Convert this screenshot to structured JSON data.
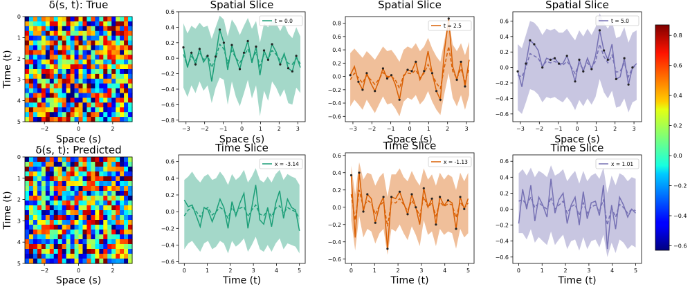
{
  "colors": {
    "green": "#1b9e77",
    "orange": "#d95f02",
    "purple": "#7570b3"
  },
  "colorbar": {
    "ticks": [
      0.8,
      0.6,
      0.4,
      0.2,
      0.0,
      -0.2,
      -0.4,
      -0.6
    ],
    "vmin": -0.63,
    "vmax": 0.87
  },
  "chart_data": [
    {
      "type": "heatmap",
      "title": "δ(s, t): True",
      "xlabel": "Space (s)",
      "ylabel": "Time (t)",
      "xticks": [
        -2,
        0,
        2
      ],
      "yticks": [
        0,
        1,
        2,
        3,
        4,
        5
      ],
      "xlim": [
        -3.14,
        3.14
      ],
      "ylim": [
        0,
        5
      ],
      "seed": 7
    },
    {
      "type": "heatmap",
      "title": "δ(s, t): Predicted",
      "xlabel": "Space (s)",
      "ylabel": "Time (t)",
      "xticks": [
        -2,
        0,
        2
      ],
      "yticks": [
        0,
        1,
        2,
        3,
        4,
        5
      ],
      "xlim": [
        -3.14,
        3.14
      ],
      "ylim": [
        0,
        5
      ],
      "seed": 19
    },
    {
      "type": "line",
      "title": "Spatial Slice",
      "xlabel": "Space (s)",
      "legend": "t = 0.0",
      "color": "green",
      "xlim": [
        -3.4,
        3.4
      ],
      "ylim": [
        -0.82,
        0.6
      ],
      "xticks": [
        -3,
        -2,
        -1,
        0,
        1,
        2,
        3
      ],
      "yticks": [
        0.6,
        0.4,
        0.2,
        0.0,
        -0.2,
        -0.4,
        -0.6,
        -0.8
      ],
      "x": [
        -3.14,
        -2.92,
        -2.71,
        -2.49,
        -2.27,
        -2.06,
        -1.84,
        -1.62,
        -1.41,
        -1.19,
        -0.97,
        -0.76,
        -0.54,
        -0.32,
        -0.11,
        0.11,
        0.32,
        0.54,
        0.76,
        0.97,
        1.19,
        1.41,
        1.62,
        1.84,
        2.06,
        2.27,
        2.49,
        2.71,
        2.92,
        3.14
      ],
      "true": [
        0.14,
        -0.12,
        0.07,
        -0.08,
        0.12,
        -0.05,
        0.03,
        -0.3,
        0.02,
        0.37,
        0.2,
        -0.15,
        0.17,
        0.0,
        -0.14,
        0.07,
        0.22,
        -0.06,
        0.15,
        -0.22,
        0.1,
        -0.02,
        0.18,
        0.08,
        -0.08,
        0.06,
        -0.13,
        -0.17,
        0.03,
        -0.12
      ],
      "mean": [
        0.05,
        -0.1,
        0.02,
        -0.03,
        0.08,
        -0.02,
        0.04,
        -0.12,
        0.0,
        0.18,
        0.12,
        -0.06,
        0.1,
        0.0,
        -0.06,
        0.03,
        0.12,
        -0.02,
        0.08,
        -0.1,
        0.05,
        -0.01,
        0.1,
        0.05,
        -0.03,
        0.03,
        -0.07,
        -0.08,
        0.0,
        -0.07
      ],
      "lower": [
        -0.38,
        -0.5,
        -0.35,
        -0.45,
        -0.3,
        -0.42,
        -0.35,
        -0.58,
        -0.38,
        -0.25,
        -0.28,
        -0.6,
        -0.3,
        -0.5,
        -0.62,
        -0.45,
        -0.28,
        -0.52,
        -0.35,
        -0.75,
        -0.42,
        -0.55,
        -0.3,
        -0.38,
        -0.5,
        -0.4,
        -0.58,
        -0.6,
        -0.38,
        -0.45
      ],
      "upper": [
        0.45,
        0.32,
        0.42,
        0.38,
        0.46,
        0.4,
        0.42,
        0.25,
        0.4,
        0.55,
        0.5,
        0.28,
        0.5,
        0.42,
        0.3,
        0.42,
        0.52,
        0.38,
        0.48,
        0.2,
        0.45,
        0.4,
        0.5,
        0.45,
        0.35,
        0.45,
        0.32,
        0.26,
        0.4,
        0.28
      ],
      "markers": true
    },
    {
      "type": "line",
      "title": "Spatial Slice",
      "xlabel": "Space (s)",
      "legend": "t = 2.5",
      "color": "orange",
      "xlim": [
        -3.4,
        3.4
      ],
      "ylim": [
        -0.68,
        0.9
      ],
      "xticks": [
        -3,
        -2,
        -1,
        0,
        1,
        2,
        3
      ],
      "yticks": [
        0.8,
        0.6,
        0.4,
        0.2,
        0.0,
        -0.2,
        -0.4,
        -0.6
      ],
      "x": [
        -3.14,
        -2.92,
        -2.71,
        -2.49,
        -2.27,
        -2.06,
        -1.84,
        -1.62,
        -1.41,
        -1.19,
        -0.97,
        -0.76,
        -0.54,
        -0.32,
        -0.11,
        0.11,
        0.32,
        0.54,
        0.76,
        0.97,
        1.19,
        1.41,
        1.62,
        1.84,
        2.06,
        2.27,
        2.49,
        2.71,
        2.92,
        3.14
      ],
      "true": [
        0.02,
        0.15,
        -0.08,
        -0.2,
        0.05,
        -0.1,
        -0.22,
        -0.06,
        0.12,
        -0.03,
        0.02,
        -0.12,
        -0.35,
        0.0,
        0.1,
        0.08,
        0.22,
        -0.05,
        0.08,
        0.38,
        0.05,
        -0.22,
        -0.35,
        0.4,
        0.87,
        0.15,
        -0.05,
        0.22,
        -0.15,
        0.25
      ],
      "mean": [
        -0.05,
        0.05,
        -0.02,
        -0.1,
        0.02,
        -0.05,
        -0.12,
        -0.04,
        0.06,
        0.0,
        0.0,
        -0.05,
        -0.18,
        0.02,
        0.05,
        0.04,
        0.1,
        -0.02,
        0.05,
        0.18,
        0.03,
        -0.1,
        -0.18,
        0.15,
        0.45,
        0.08,
        -0.03,
        0.12,
        -0.08,
        0.12
      ],
      "lower": [
        -0.45,
        -0.35,
        -0.42,
        -0.5,
        -0.35,
        -0.45,
        -0.55,
        -0.42,
        -0.3,
        -0.42,
        -0.4,
        -0.48,
        -0.6,
        -0.38,
        -0.32,
        -0.35,
        -0.28,
        -0.42,
        -0.35,
        -0.22,
        -0.38,
        -0.5,
        -0.58,
        -0.25,
        0.05,
        -0.32,
        -0.45,
        -0.28,
        -0.5,
        -0.28
      ],
      "upper": [
        0.35,
        0.42,
        0.35,
        0.28,
        0.38,
        0.32,
        0.25,
        0.35,
        0.45,
        0.38,
        0.4,
        0.32,
        0.22,
        0.4,
        0.45,
        0.42,
        0.5,
        0.38,
        0.45,
        0.58,
        0.42,
        0.3,
        0.22,
        0.55,
        0.85,
        0.48,
        0.38,
        0.5,
        0.32,
        0.52
      ],
      "markers": true
    },
    {
      "type": "line",
      "title": "Spatial Slice",
      "xlabel": "Space (s)",
      "legend": "t = 5.0",
      "color": "purple",
      "xlim": [
        -3.4,
        3.4
      ],
      "ylim": [
        -0.7,
        0.72
      ],
      "xticks": [
        -3,
        -2,
        -1,
        0,
        1,
        2,
        3
      ],
      "yticks": [
        0.6,
        0.4,
        0.2,
        0.0,
        -0.2,
        -0.4,
        -0.6
      ],
      "x": [
        -3.14,
        -2.92,
        -2.71,
        -2.49,
        -2.27,
        -2.06,
        -1.84,
        -1.62,
        -1.41,
        -1.19,
        -0.97,
        -0.76,
        -0.54,
        -0.32,
        -0.11,
        0.11,
        0.32,
        0.54,
        0.76,
        0.97,
        1.19,
        1.41,
        1.62,
        1.84,
        2.06,
        2.27,
        2.49,
        2.71,
        2.92,
        3.14
      ],
      "true": [
        -0.05,
        -0.25,
        0.05,
        0.35,
        0.3,
        0.22,
        0.0,
        0.12,
        0.1,
        0.12,
        0.05,
        0.05,
        0.15,
        0.0,
        -0.18,
        0.1,
        -0.05,
        0.12,
        -0.02,
        0.15,
        0.48,
        0.22,
        0.1,
        0.3,
        -0.15,
        -0.12,
        0.12,
        -0.22,
        0.0,
        0.05
      ],
      "mean": [
        -0.1,
        -0.12,
        0.0,
        0.18,
        0.15,
        0.12,
        0.02,
        0.08,
        0.06,
        0.08,
        0.04,
        0.03,
        0.08,
        0.01,
        -0.08,
        0.05,
        -0.02,
        0.06,
        0.0,
        0.08,
        0.3,
        0.14,
        0.06,
        0.16,
        -0.06,
        -0.05,
        0.06,
        -0.12,
        0.0,
        0.02
      ],
      "lower": [
        -0.55,
        -0.6,
        -0.45,
        -0.28,
        -0.3,
        -0.35,
        -0.45,
        -0.38,
        -0.4,
        -0.38,
        -0.42,
        -0.45,
        -0.38,
        -0.45,
        -0.55,
        -0.42,
        -0.5,
        -0.4,
        -0.48,
        -0.38,
        -0.15,
        -0.32,
        -0.4,
        -0.3,
        -0.52,
        -0.5,
        -0.4,
        -0.58,
        -0.45,
        -0.42
      ],
      "upper": [
        0.3,
        0.25,
        0.42,
        0.6,
        0.58,
        0.52,
        0.42,
        0.5,
        0.48,
        0.5,
        0.45,
        0.45,
        0.5,
        0.42,
        0.35,
        0.48,
        0.4,
        0.5,
        0.42,
        0.52,
        0.7,
        0.58,
        0.5,
        0.6,
        0.38,
        0.4,
        0.52,
        0.32,
        0.45,
        0.48
      ],
      "markers": true
    },
    {
      "type": "line",
      "title": "Time Slice",
      "xlabel": "Time (t)",
      "legend": "x = -3.14",
      "color": "green",
      "xlim": [
        -0.25,
        5.25
      ],
      "ylim": [
        -0.62,
        0.68
      ],
      "xticks": [
        0,
        1,
        2,
        3,
        4,
        5
      ],
      "yticks": [
        0.6,
        0.4,
        0.2,
        0.0,
        -0.2,
        -0.4,
        -0.6
      ],
      "x": [
        0,
        0.17,
        0.34,
        0.52,
        0.69,
        0.86,
        1.03,
        1.21,
        1.38,
        1.55,
        1.72,
        1.9,
        2.07,
        2.24,
        2.41,
        2.59,
        2.76,
        2.93,
        3.1,
        3.28,
        3.45,
        3.62,
        3.79,
        3.97,
        4.14,
        4.31,
        4.48,
        4.66,
        4.83,
        5.0
      ],
      "true": [
        0.14,
        0.06,
        0.08,
        -0.05,
        -0.18,
        0.05,
        0.02,
        -0.12,
        0.0,
        0.15,
        0.05,
        -0.2,
        0.12,
        -0.05,
        0.1,
        0.22,
        -0.2,
        0.05,
        0.32,
        -0.1,
        -0.15,
        0.05,
        -0.18,
        0.1,
        0.25,
        -0.08,
        0.15,
        0.05,
        0.02,
        -0.23
      ],
      "mean": [
        -0.05,
        0.02,
        0.05,
        0.0,
        -0.06,
        0.02,
        0.05,
        -0.04,
        0.0,
        0.05,
        0.02,
        -0.08,
        0.05,
        -0.02,
        0.04,
        0.06,
        -0.06,
        0.02,
        0.08,
        -0.03,
        -0.05,
        0.02,
        -0.06,
        0.04,
        0.07,
        -0.02,
        0.05,
        0.02,
        0.0,
        -0.08
      ],
      "lower": [
        -0.45,
        -0.38,
        -0.35,
        -0.42,
        -0.48,
        -0.38,
        -0.35,
        -0.45,
        -0.42,
        -0.35,
        -0.38,
        -0.5,
        -0.35,
        -0.42,
        -0.38,
        -0.32,
        -0.48,
        -0.4,
        -0.3,
        -0.45,
        -0.48,
        -0.4,
        -0.48,
        -0.38,
        -0.32,
        -0.45,
        -0.38,
        -0.4,
        -0.42,
        -0.5
      ],
      "upper": [
        0.38,
        0.42,
        0.48,
        0.4,
        0.35,
        0.42,
        0.45,
        0.38,
        0.4,
        0.48,
        0.42,
        0.32,
        0.45,
        0.38,
        0.42,
        0.5,
        0.35,
        0.42,
        0.52,
        0.38,
        0.35,
        0.42,
        0.35,
        0.45,
        0.5,
        0.38,
        0.45,
        0.42,
        0.4,
        0.32
      ],
      "markers": false
    },
    {
      "type": "line",
      "title": "Time Slice",
      "xlabel": "Time (t)",
      "legend": "x = -1.13",
      "color": "orange",
      "xlim": [
        -0.25,
        5.25
      ],
      "ylim": [
        -0.65,
        0.63
      ],
      "xticks": [
        0,
        1,
        2,
        3,
        4,
        5
      ],
      "yticks": [
        0.6,
        0.4,
        0.2,
        0.0,
        -0.2,
        -0.4,
        -0.6
      ],
      "x": [
        0,
        0.17,
        0.34,
        0.52,
        0.69,
        0.86,
        1.03,
        1.21,
        1.38,
        1.55,
        1.72,
        1.9,
        2.07,
        2.24,
        2.41,
        2.59,
        2.76,
        2.93,
        3.1,
        3.28,
        3.45,
        3.62,
        3.79,
        3.97,
        4.14,
        4.31,
        4.48,
        4.66,
        4.83,
        5.0
      ],
      "true": [
        0.37,
        -0.35,
        0.4,
        -0.05,
        0.15,
        0.1,
        -0.18,
        0.02,
        0.12,
        -0.48,
        0.12,
        0.1,
        0.18,
        0.05,
        -0.08,
        0.15,
        0.0,
        -0.2,
        0.22,
        0.0,
        0.1,
        -0.2,
        0.12,
        0.02,
        0.08,
        0.05,
        -0.25,
        0.12,
        -0.02,
        0.1
      ],
      "mean": [
        0.15,
        -0.15,
        0.2,
        0.0,
        0.08,
        0.05,
        -0.08,
        0.02,
        0.06,
        -0.22,
        0.06,
        0.05,
        0.1,
        0.03,
        -0.04,
        0.08,
        0.0,
        -0.1,
        0.12,
        0.0,
        0.05,
        -0.1,
        0.06,
        0.01,
        0.04,
        0.03,
        -0.12,
        0.06,
        -0.01,
        0.05
      ],
      "lower": [
        -0.15,
        -0.5,
        -0.1,
        -0.35,
        -0.25,
        -0.28,
        -0.42,
        -0.3,
        -0.25,
        -0.55,
        -0.25,
        -0.28,
        -0.2,
        -0.3,
        -0.38,
        -0.22,
        -0.32,
        -0.45,
        -0.15,
        -0.32,
        -0.28,
        -0.45,
        -0.25,
        -0.32,
        -0.28,
        -0.3,
        -0.48,
        -0.25,
        -0.35,
        -0.3
      ],
      "upper": [
        0.48,
        0.15,
        0.52,
        0.32,
        0.4,
        0.38,
        0.25,
        0.35,
        0.4,
        0.12,
        0.38,
        0.38,
        0.45,
        0.35,
        0.3,
        0.42,
        0.32,
        0.25,
        0.45,
        0.32,
        0.38,
        0.25,
        0.4,
        0.32,
        0.38,
        0.35,
        0.2,
        0.4,
        0.3,
        0.4
      ],
      "markers": true
    },
    {
      "type": "line",
      "title": "Time Slice",
      "xlabel": "Time (t)",
      "legend": "x = 1.01",
      "color": "purple",
      "xlim": [
        -0.25,
        5.25
      ],
      "ylim": [
        -0.68,
        0.68
      ],
      "xticks": [
        0,
        1,
        2,
        3,
        4,
        5
      ],
      "yticks": [
        0.6,
        0.4,
        0.2,
        0.0,
        -0.2,
        -0.4,
        -0.6
      ],
      "x": [
        0,
        0.17,
        0.34,
        0.52,
        0.69,
        0.86,
        1.03,
        1.21,
        1.38,
        1.55,
        1.72,
        1.9,
        2.07,
        2.24,
        2.41,
        2.59,
        2.76,
        2.93,
        3.1,
        3.28,
        3.45,
        3.62,
        3.79,
        3.97,
        4.14,
        4.31,
        4.48,
        4.66,
        4.83,
        5.0
      ],
      "true": [
        -0.18,
        0.25,
        0.0,
        0.3,
        -0.15,
        0.15,
        0.05,
        -0.1,
        0.38,
        -0.05,
        0.12,
        0.2,
        -0.18,
        0.05,
        0.15,
        -0.2,
        0.22,
        -0.12,
        0.08,
        0.1,
        -0.08,
        0.3,
        -0.5,
        0.05,
        -0.25,
        0.15,
        0.05,
        -0.1,
        0.0,
        -0.05
      ],
      "mean": [
        0.1,
        0.12,
        0.05,
        0.15,
        0.02,
        0.08,
        0.04,
        0.0,
        0.15,
        0.0,
        0.05,
        0.1,
        -0.05,
        0.03,
        0.06,
        -0.08,
        0.08,
        -0.05,
        0.03,
        0.05,
        -0.03,
        0.12,
        -0.2,
        0.02,
        -0.1,
        0.06,
        0.02,
        -0.05,
        0.0,
        -0.02
      ],
      "lower": [
        -0.3,
        -0.3,
        -0.38,
        -0.25,
        -0.42,
        -0.35,
        -0.4,
        -0.45,
        -0.28,
        -0.45,
        -0.38,
        -0.32,
        -0.5,
        -0.4,
        -0.38,
        -0.52,
        -0.35,
        -0.5,
        -0.4,
        -0.38,
        -0.48,
        -0.32,
        -0.6,
        -0.42,
        -0.55,
        -0.38,
        -0.42,
        -0.5,
        -0.45,
        -0.48
      ],
      "upper": [
        0.45,
        0.5,
        0.42,
        0.52,
        0.4,
        0.48,
        0.45,
        0.4,
        0.55,
        0.42,
        0.45,
        0.5,
        0.35,
        0.42,
        0.48,
        0.32,
        0.48,
        0.35,
        0.42,
        0.45,
        0.38,
        0.52,
        0.2,
        0.42,
        0.3,
        0.45,
        0.42,
        0.35,
        0.4,
        0.38
      ],
      "markers": false
    }
  ]
}
